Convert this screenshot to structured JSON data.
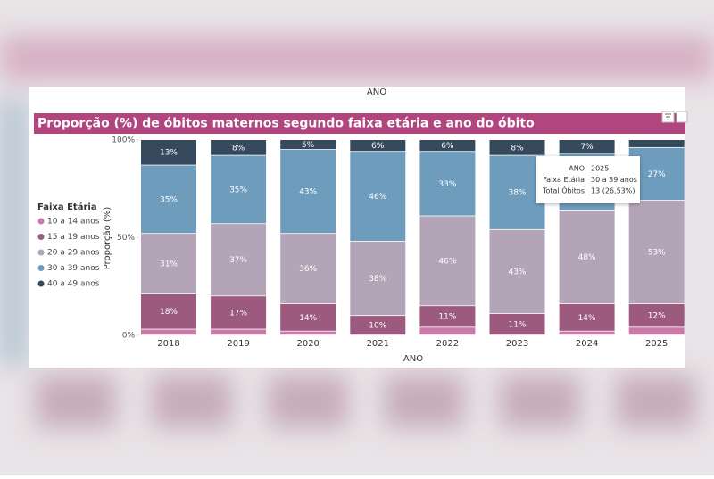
{
  "chart_data": {
    "type": "bar",
    "stacked": true,
    "header_axis_label": "ANO",
    "title": "Proporção (%) de óbitos maternos segundo faixa etária e ano do óbito",
    "x_label": "ANO",
    "y_label": "Proporção (%)",
    "legend_title": "Faixa Etária",
    "legend_position": "left",
    "categories": [
      "2018",
      "2019",
      "2020",
      "2021",
      "2022",
      "2023",
      "2024",
      "2025"
    ],
    "ylim": [
      0,
      100
    ],
    "yticks": [
      {
        "value": 0,
        "label": "0%"
      },
      {
        "value": 50,
        "label": "50%"
      },
      {
        "value": 100,
        "label": "100%"
      }
    ],
    "series": [
      {
        "name": "10 a 14 anos",
        "color": "#c97aa8",
        "values": [
          3,
          3,
          2,
          0,
          4,
          0,
          2,
          4
        ],
        "value_labels": [
          null,
          null,
          null,
          null,
          null,
          null,
          null,
          null
        ]
      },
      {
        "name": "15 a 19 anos",
        "color": "#9b5a7e",
        "values": [
          18,
          17,
          14,
          10,
          11,
          11,
          14,
          12
        ],
        "value_labels": [
          "18%",
          "17%",
          "14%",
          "10%",
          "11%",
          "11%",
          "14%",
          "12%"
        ]
      },
      {
        "name": "20 a 29 anos",
        "color": "#b4a4b7",
        "values": [
          31,
          37,
          36,
          38,
          46,
          43,
          48,
          53
        ],
        "value_labels": [
          "31%",
          "37%",
          "36%",
          "38%",
          "46%",
          "43%",
          "48%",
          "53%"
        ]
      },
      {
        "name": "30 a 39 anos",
        "color": "#6e9cbc",
        "values": [
          35,
          35,
          43,
          46,
          33,
          38,
          29,
          27
        ],
        "value_labels": [
          "35%",
          "35%",
          "43%",
          "46%",
          "33%",
          "38%",
          null,
          "27%"
        ]
      },
      {
        "name": "40 a 49 anos",
        "color": "#374a5d",
        "values": [
          13,
          8,
          5,
          6,
          6,
          8,
          7,
          4
        ],
        "value_labels": [
          "13%",
          "8%",
          "5%",
          "6%",
          "6%",
          "8%",
          "7%",
          null
        ]
      }
    ],
    "tooltip": {
      "rows": [
        [
          "ANO",
          "2025"
        ],
        [
          "Faixa Etária",
          "30 a 39 anos"
        ],
        [
          "Total Óbitos",
          "13 (26,53%)"
        ]
      ]
    }
  }
}
